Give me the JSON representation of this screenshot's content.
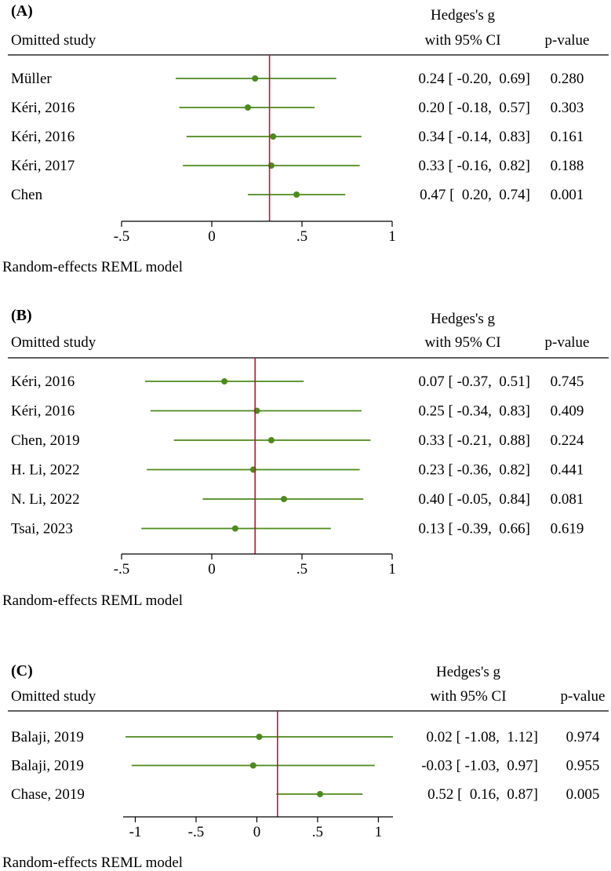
{
  "chart_data": [
    {
      "type": "forest",
      "panel_label": "(A)",
      "header": {
        "study": "Omitted study",
        "effect_line1": "Hedges's g",
        "effect_line2": "with 95% CI",
        "p": "p-value"
      },
      "overall_estimate": 0.32,
      "xlim": [
        -0.5,
        1
      ],
      "ticks": [
        -0.5,
        0,
        0.5,
        1
      ],
      "tick_labels": [
        "-.5",
        "0",
        ".5",
        "1"
      ],
      "footer": "Random-effects REML model",
      "line_color": "#4d8a1c",
      "ref_color": "#c0143c",
      "rows": [
        {
          "study": "Müller",
          "g": 0.24,
          "lo": -0.2,
          "hi": 0.69,
          "ci_text": "0.24 [ -0.20,  0.69]",
          "p": "0.280"
        },
        {
          "study": "Kéri, 2016",
          "g": 0.2,
          "lo": -0.18,
          "hi": 0.57,
          "ci_text": "0.20 [ -0.18,  0.57]",
          "p": "0.303"
        },
        {
          "study": "Kéri, 2016",
          "g": 0.34,
          "lo": -0.14,
          "hi": 0.83,
          "ci_text": "0.34 [ -0.14,  0.83]",
          "p": "0.161"
        },
        {
          "study": "Kéri, 2017",
          "g": 0.33,
          "lo": -0.16,
          "hi": 0.82,
          "ci_text": "0.33 [ -0.16,  0.82]",
          "p": "0.188"
        },
        {
          "study": "Chen",
          "g": 0.47,
          "lo": 0.2,
          "hi": 0.74,
          "ci_text": "0.47 [  0.20,  0.74]",
          "p": "0.001"
        }
      ]
    },
    {
      "type": "forest",
      "panel_label": "(B)",
      "header": {
        "study": "Omitted study",
        "effect_line1": "Hedges's g",
        "effect_line2": "with 95% CI",
        "p": "p-value"
      },
      "overall_estimate": 0.24,
      "xlim": [
        -0.5,
        1
      ],
      "ticks": [
        -0.5,
        0,
        0.5,
        1
      ],
      "tick_labels": [
        "-.5",
        "0",
        ".5",
        "1"
      ],
      "footer": "Random-effects REML model",
      "line_color": "#4d8a1c",
      "ref_color": "#c0143c",
      "rows": [
        {
          "study": "Kéri, 2016",
          "g": 0.07,
          "lo": -0.37,
          "hi": 0.51,
          "ci_text": "0.07 [ -0.37,  0.51]",
          "p": "0.745"
        },
        {
          "study": "Kéri, 2016",
          "g": 0.25,
          "lo": -0.34,
          "hi": 0.83,
          "ci_text": "0.25 [ -0.34,  0.83]",
          "p": "0.409"
        },
        {
          "study": "Chen, 2019",
          "g": 0.33,
          "lo": -0.21,
          "hi": 0.88,
          "ci_text": "0.33 [ -0.21,  0.88]",
          "p": "0.224"
        },
        {
          "study": "H. Li, 2022",
          "g": 0.23,
          "lo": -0.36,
          "hi": 0.82,
          "ci_text": "0.23 [ -0.36,  0.82]",
          "p": "0.441"
        },
        {
          "study": "N. Li, 2022",
          "g": 0.4,
          "lo": -0.05,
          "hi": 0.84,
          "ci_text": "0.40 [ -0.05,  0.84]",
          "p": "0.081"
        },
        {
          "study": "Tsai, 2023",
          "g": 0.13,
          "lo": -0.39,
          "hi": 0.66,
          "ci_text": "0.13 [ -0.39,  0.66]",
          "p": "0.619"
        }
      ]
    },
    {
      "type": "forest",
      "panel_label": "(C)",
      "header": {
        "study": "Omitted study",
        "effect_line1": "Hedges's g",
        "effect_line2": "with 95% CI",
        "p": "p-value"
      },
      "overall_estimate": 0.17,
      "xlim": [
        -1.1,
        1.12
      ],
      "ticks": [
        -1,
        -0.5,
        0,
        0.5,
        1
      ],
      "tick_labels": [
        "-1",
        "-.5",
        "0",
        ".5",
        "1"
      ],
      "footer": "Random-effects REML model",
      "line_color": "#4d8a1c",
      "ref_color": "#c0143c",
      "rows": [
        {
          "study": "Balaji, 2019",
          "g": 0.02,
          "lo": -1.08,
          "hi": 1.12,
          "ci_text": "0.02 [ -1.08,  1.12]",
          "p": "0.974"
        },
        {
          "study": "Balaji, 2019",
          "g": -0.03,
          "lo": -1.03,
          "hi": 0.97,
          "ci_text": "-0.03 [ -1.03,  0.97]",
          "p": "0.955"
        },
        {
          "study": "Chase, 2019",
          "g": 0.52,
          "lo": 0.16,
          "hi": 0.87,
          "ci_text": "0.52 [  0.16,  0.87]",
          "p": "0.005"
        }
      ]
    }
  ]
}
